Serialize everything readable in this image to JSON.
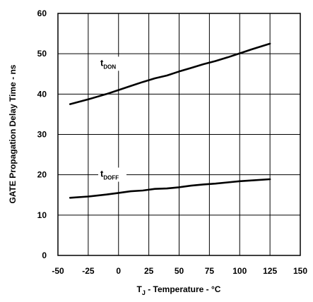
{
  "chart_data": {
    "type": "line",
    "title": "",
    "xlabel": {
      "prefix": "T",
      "subscript": "J",
      "suffix": " - Temperature - °C"
    },
    "ylabel": "GATE Propagation Delay Time - ns",
    "xlim": [
      -50,
      150
    ],
    "ylim": [
      0,
      60
    ],
    "xticks": [
      -50,
      -25,
      0,
      25,
      50,
      75,
      100,
      125,
      150
    ],
    "yticks": [
      0,
      10,
      20,
      30,
      40,
      50,
      60
    ],
    "grid": true,
    "legend": "none",
    "series": [
      {
        "name": "t",
        "name_sub": "DON",
        "color": "#000000",
        "label_anchor": {
          "x": -15,
          "y": 47
        },
        "x": [
          -40,
          -25,
          -10,
          0,
          10,
          20,
          30,
          40,
          50,
          60,
          70,
          80,
          90,
          100,
          110,
          125
        ],
        "y": [
          37.5,
          38.7,
          40.0,
          41.0,
          42.0,
          43.0,
          43.9,
          44.6,
          45.6,
          46.5,
          47.4,
          48.2,
          49.1,
          50.1,
          51.1,
          52.5
        ]
      },
      {
        "name": "t",
        "name_sub": "DOFF",
        "color": "#000000",
        "label_anchor": {
          "x": -15,
          "y": 19.5
        },
        "x": [
          -40,
          -25,
          -10,
          0,
          10,
          20,
          30,
          40,
          50,
          60,
          70,
          80,
          90,
          100,
          110,
          125
        ],
        "y": [
          14.3,
          14.6,
          15.1,
          15.5,
          15.9,
          16.1,
          16.5,
          16.6,
          16.9,
          17.3,
          17.6,
          17.8,
          18.1,
          18.4,
          18.6,
          18.9
        ]
      }
    ]
  }
}
